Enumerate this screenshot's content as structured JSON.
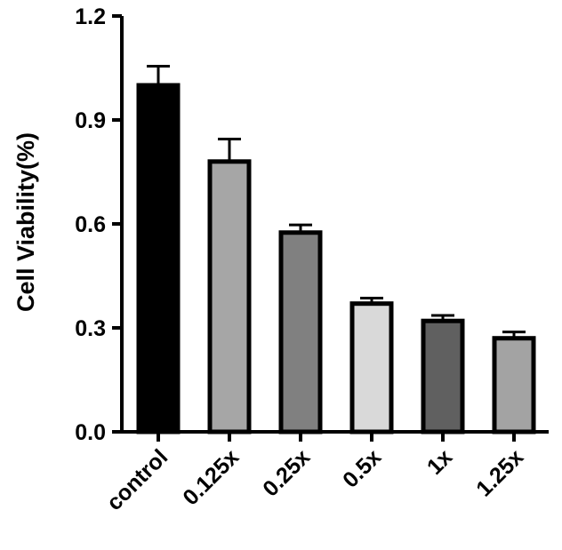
{
  "chart_data": {
    "type": "bar",
    "y_label": "Cell Viability(%)",
    "categories": [
      "control",
      "0.125x",
      "0.25x",
      "0.5x",
      "1x",
      "1.25x"
    ],
    "values": [
      1.0,
      0.78,
      0.575,
      0.37,
      0.32,
      0.27
    ],
    "errors": [
      0.055,
      0.065,
      0.022,
      0.016,
      0.016,
      0.018
    ],
    "colors": [
      "#000000",
      "#a6a6a6",
      "#808080",
      "#d9d9d9",
      "#606060",
      "#a3a3a3"
    ],
    "ylim": [
      0,
      1.2
    ],
    "yticks": [
      {
        "value": 0,
        "label": "0.0"
      },
      0.3,
      0.6,
      0.9,
      1.2
    ]
  }
}
